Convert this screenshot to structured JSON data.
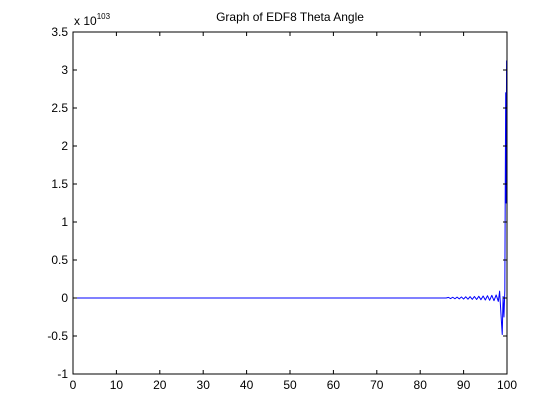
{
  "chart_data": {
    "type": "line",
    "title": "Graph of EDF8 Theta Angle",
    "xlabel": "",
    "ylabel": "",
    "y_scale_label": {
      "base": "x 10",
      "exponent": "103"
    },
    "xlim": [
      0,
      100
    ],
    "ylim": [
      -1,
      3.5
    ],
    "x_ticks": [
      0,
      10,
      20,
      30,
      40,
      50,
      60,
      70,
      80,
      90,
      100
    ],
    "x_tick_labels": [
      "0",
      "10",
      "20",
      "30",
      "40",
      "50",
      "60",
      "70",
      "80",
      "90",
      "100"
    ],
    "y_ticks": [
      -1,
      -0.5,
      0,
      0.5,
      1,
      1.5,
      2,
      2.5,
      3,
      3.5
    ],
    "y_tick_labels": [
      "-1",
      "-0.5",
      "0",
      "0.5",
      "1",
      "1.5",
      "2",
      "2.5",
      "3",
      "3.5"
    ],
    "grid": false,
    "legend": "none",
    "series": [
      {
        "color": "#0000ff",
        "x": [
          0,
          86,
          86.5,
          87,
          87.5,
          88,
          88.5,
          89,
          89.5,
          90,
          90.5,
          91,
          91.5,
          92,
          92.5,
          93,
          93.5,
          94,
          94.5,
          95,
          95.5,
          96,
          96.5,
          97,
          97.5,
          98,
          98.3,
          98.6,
          98.9,
          99.1,
          99.3,
          99.5,
          99.6,
          99.7,
          99.8,
          99.9,
          100
        ],
        "y": [
          0,
          0,
          0.008,
          -0.008,
          0.01,
          -0.01,
          0.012,
          -0.012,
          0.014,
          -0.014,
          0.016,
          -0.016,
          0.018,
          -0.018,
          0.02,
          -0.02,
          0.022,
          -0.022,
          0.026,
          -0.026,
          0.03,
          -0.03,
          0.035,
          -0.035,
          0.04,
          -0.045,
          0.09,
          -0.2,
          -0.48,
          0.02,
          -0.25,
          0.1,
          1.5,
          2.7,
          1.25,
          3.12,
          1.8
        ]
      }
    ]
  }
}
